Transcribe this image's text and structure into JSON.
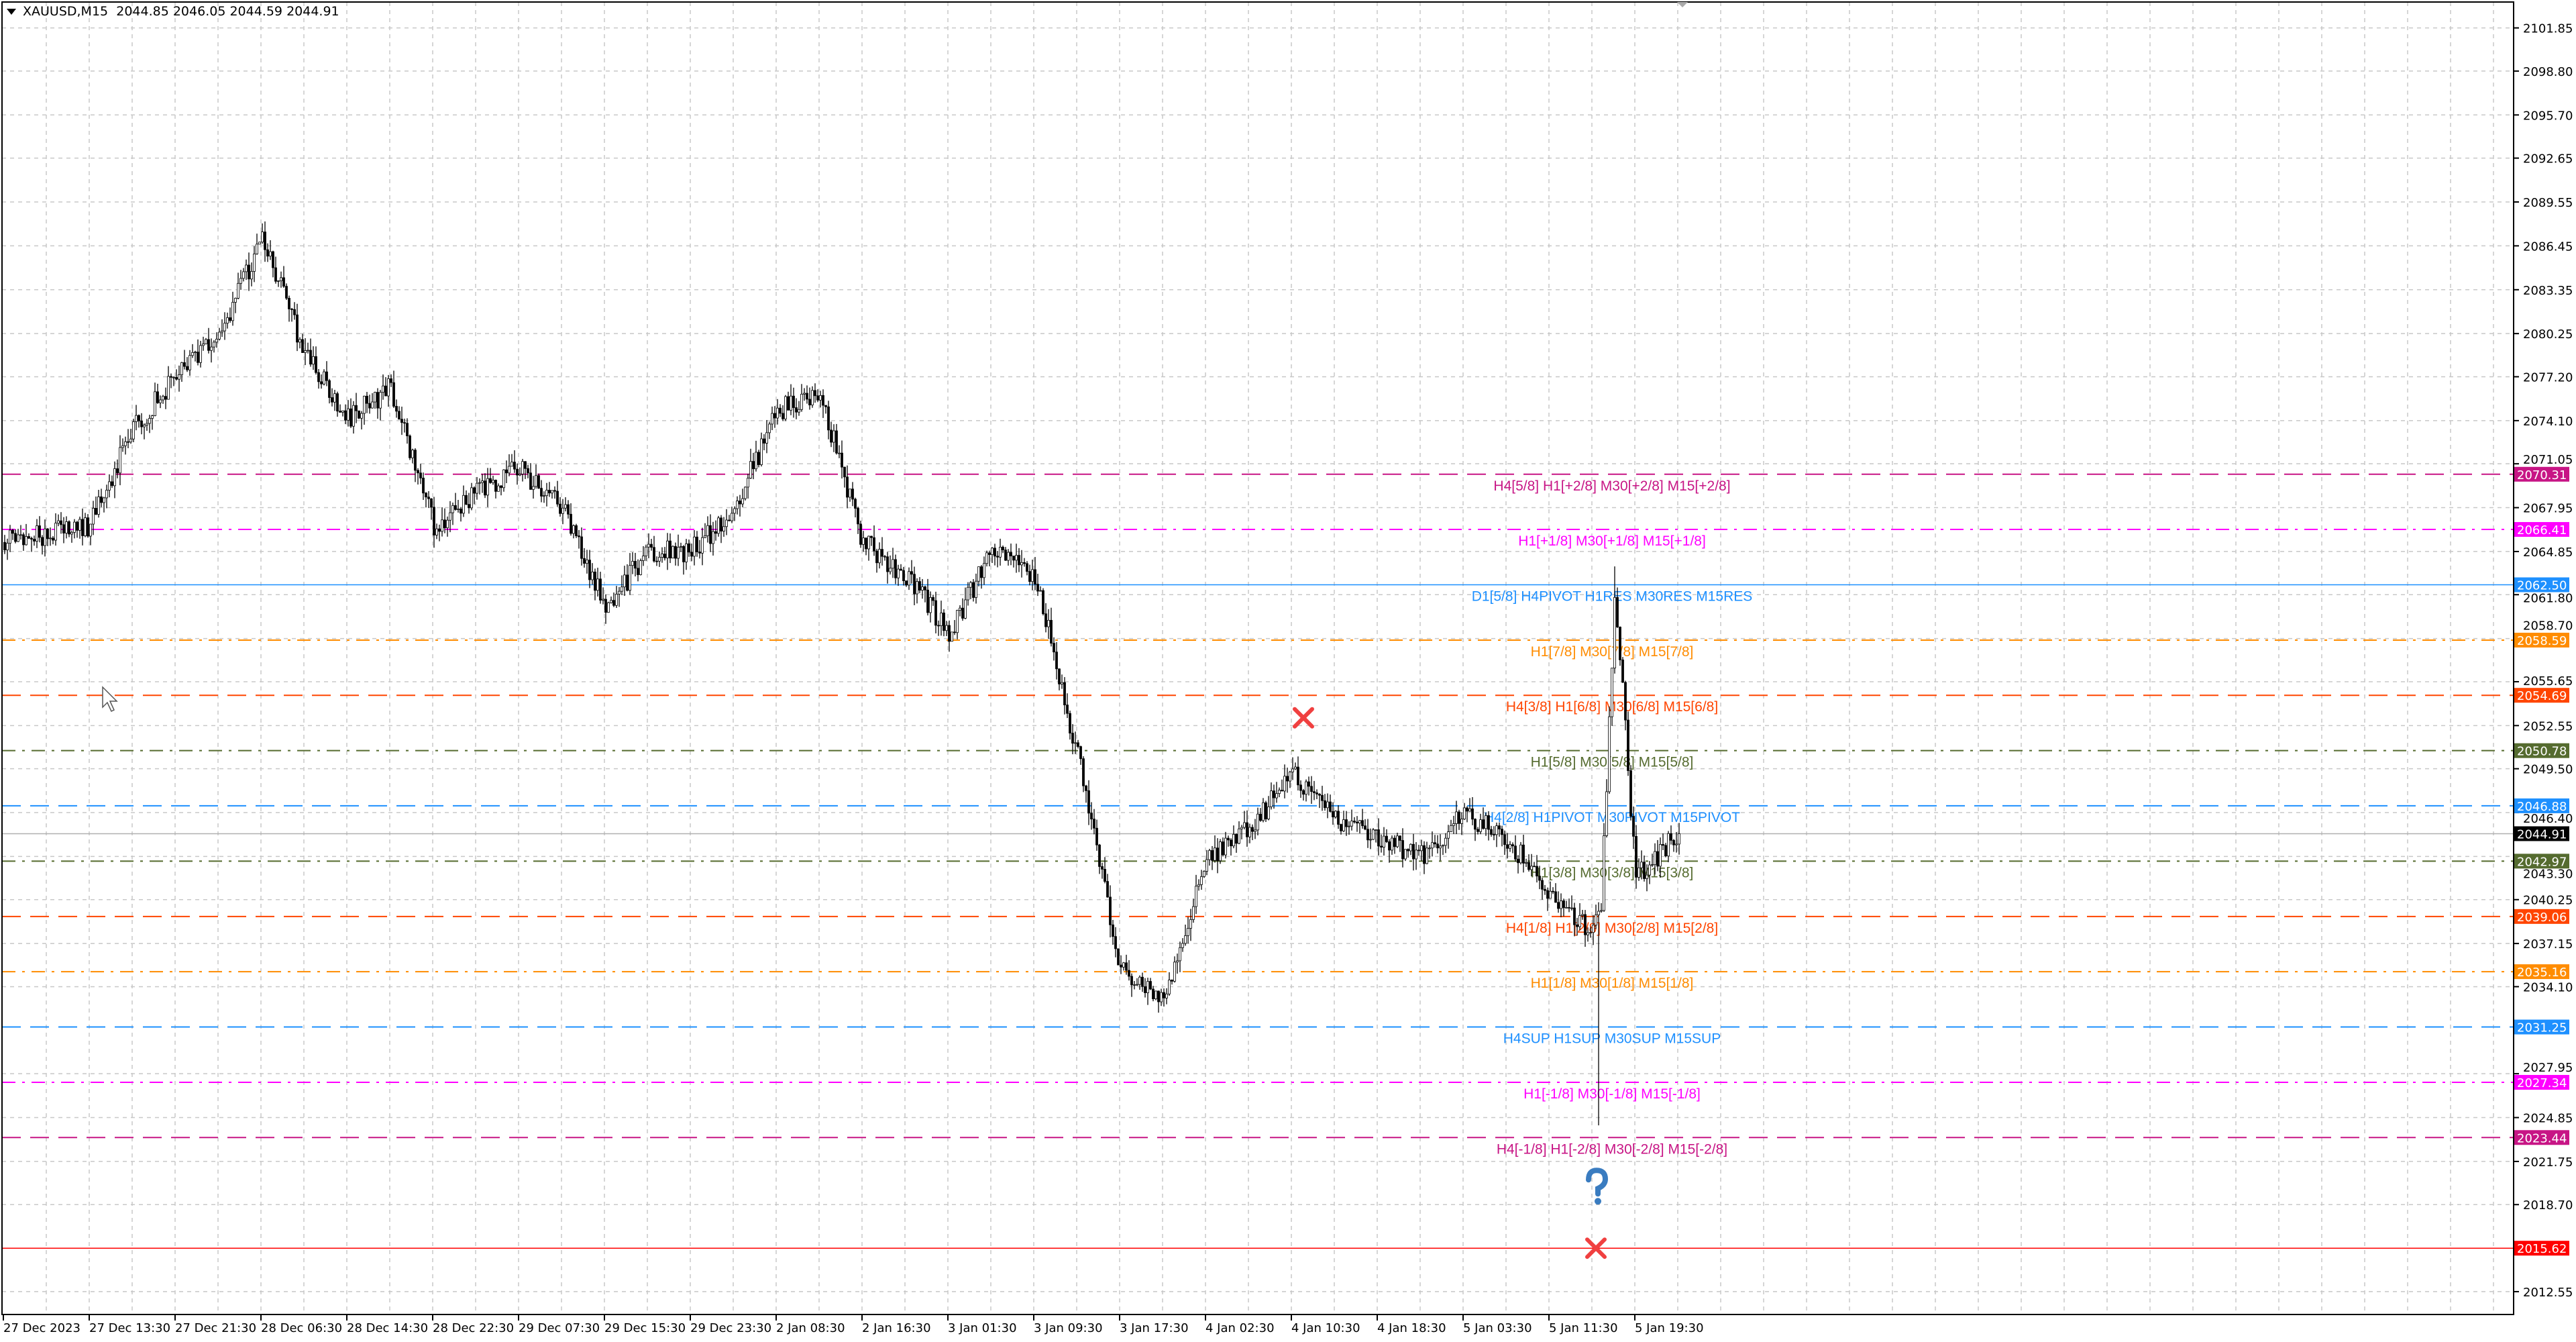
{
  "header": {
    "symbol": "XAUUSD,M15",
    "ohlc": "2044.85 2046.05 2044.59 2044.91"
  },
  "chart_data": {
    "type": "candlestick",
    "symbol": "XAUUSD",
    "timeframe": "M15",
    "ylim": [
      2011.0,
      2103.5
    ],
    "grid": true,
    "y_ticks": [
      "2101.85",
      "2098.80",
      "2095.70",
      "2092.65",
      "2089.55",
      "2086.45",
      "2083.35",
      "2080.25",
      "2077.20",
      "2074.10",
      "2071.05",
      "2067.95",
      "2064.85",
      "2061.80",
      "2058.70",
      "2055.65",
      "2052.55",
      "2049.50",
      "2046.40",
      "2043.30",
      "2040.25",
      "2037.15",
      "2034.10",
      "2027.95",
      "2024.85",
      "2021.75",
      "2018.70",
      "2012.55"
    ],
    "x_ticks": [
      "27 Dec 2023",
      "27 Dec 13:30",
      "27 Dec 21:30",
      "28 Dec 06:30",
      "28 Dec 14:30",
      "28 Dec 22:30",
      "29 Dec 07:30",
      "29 Dec 15:30",
      "29 Dec 23:30",
      "2 Jan 08:30",
      "2 Jan 16:30",
      "3 Jan 01:30",
      "3 Jan 09:30",
      "3 Jan 17:30",
      "4 Jan 02:30",
      "4 Jan 10:30",
      "4 Jan 18:30",
      "5 Jan 03:30",
      "5 Jan 11:30",
      "5 Jan 19:30"
    ],
    "approx_close_every_4h": [
      2065.5,
      2066.1,
      2066.7,
      2073.6,
      2077.1,
      2080.0,
      2087.0,
      2078.9,
      2074.2,
      2076.5,
      2066.7,
      2069.0,
      2070.7,
      2067.8,
      2060.9,
      2064.9,
      2064.9,
      2067.8,
      2074.8,
      2075.9,
      2065.5,
      2063.2,
      2059.1,
      2064.9,
      2063.2,
      2050.4,
      2035.3,
      2033.0,
      2042.9,
      2045.2,
      2049.2,
      2045.8,
      2044.6,
      2043.4,
      2046.3,
      2044.6,
      2040.5,
      2038.8,
      2041.9,
      2044.91
    ],
    "spike_5_jan": {
      "high": 2063.8,
      "low": 2024.3
    },
    "current_price": {
      "value": "2044.91",
      "color": "#000000"
    },
    "levels": [
      {
        "price": "2070.31",
        "label": "H4[5/8] H1[+2/8] M30[+2/8] M15[+2/8]",
        "color": "#C71585",
        "style": "dashed"
      },
      {
        "price": "2066.41",
        "label": "H1[+1/8] M30[+1/8] M15[+1/8]",
        "color": "#FF00FF",
        "style": "dashdot"
      },
      {
        "price": "2062.50",
        "label": "D1[5/8] H4PIVOT H1RES M30RES M15RES",
        "color": "#1E90FF",
        "style": "solid"
      },
      {
        "price": "2058.59",
        "label": "H1[7/8] M30[7/8] M15[7/8]",
        "color": "#FF8C00",
        "style": "dashdot"
      },
      {
        "price": "2054.69",
        "label": "H4[3/8] H1[6/8] M30[6/8] M15[6/8]",
        "color": "#FF4500",
        "style": "dashed"
      },
      {
        "price": "2050.78",
        "label": "H1[5/8] M30[5/8] M15[5/8]",
        "color": "#556B2F",
        "style": "dashdot"
      },
      {
        "price": "2046.88",
        "label": "H4[2/8] H1PIVOT M30PIVOT M15PIVOT",
        "color": "#1E90FF",
        "style": "dashed"
      },
      {
        "price": "2042.97",
        "label": "H1[3/8] M30[3/8] M15[3/8]",
        "color": "#556B2F",
        "style": "dashdot"
      },
      {
        "price": "2039.06",
        "label": "H4[1/8] H1[2/8] M30[2/8] M15[2/8]",
        "color": "#FF4500",
        "style": "dashed"
      },
      {
        "price": "2035.16",
        "label": "H1[1/8] M30[1/8] M15[1/8]",
        "color": "#FF8C00",
        "style": "dashdot"
      },
      {
        "price": "2031.25",
        "label": "H4SUP H1SUP M30SUP M15SUP",
        "color": "#1E90FF",
        "style": "dashed"
      },
      {
        "price": "2027.34",
        "label": "H1[-1/8] M30[-1/8] M15[-1/8]",
        "color": "#FF00FF",
        "style": "dashdot"
      },
      {
        "price": "2023.44",
        "label": "H4[-1/8] H1[-2/8] M30[-2/8] M15[-2/8]",
        "color": "#C71585",
        "style": "dashed"
      },
      {
        "price": "2015.62",
        "label": "",
        "color": "#FF0000",
        "style": "solid"
      }
    ],
    "markers": [
      {
        "type": "x-mark",
        "price": 2053.1,
        "color": "#F04040",
        "near": "4 Jan 10:30"
      },
      {
        "type": "question-mark",
        "price": 2019.6,
        "color": "#3A7CC0",
        "near": "5 Jan 11:30"
      },
      {
        "type": "x-mark",
        "price": 2015.62,
        "color": "#F04040",
        "near": "5 Jan 11:30"
      }
    ]
  }
}
